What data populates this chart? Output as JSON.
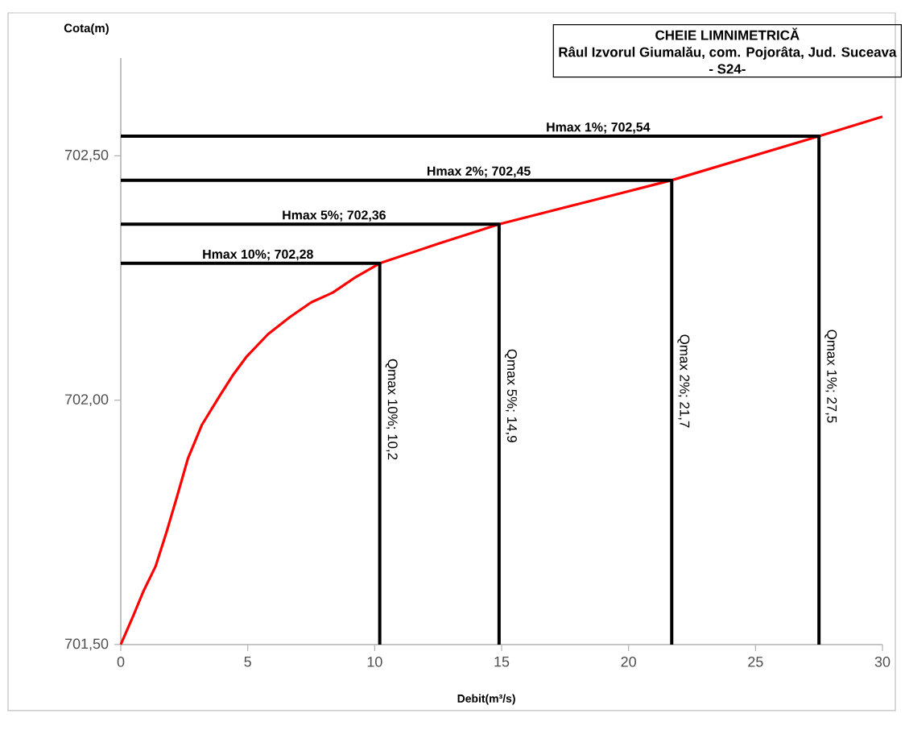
{
  "chart_data": {
    "type": "line",
    "title": "CHEIE LIMNIMETRICĂ",
    "subtitle": "Râul Izvorul Giumalău, com. Pojorâta, Jud. Suceava",
    "xlabel": "Debit(m³/s)",
    "ylabel": "Cota(m)",
    "xlim": [
      0,
      30
    ],
    "xticks": [
      0,
      5,
      10,
      15,
      20,
      25,
      30
    ],
    "ylim": [
      701.5,
      702.7
    ],
    "yticks": [
      {
        "value": 701.5,
        "label": "701,50"
      },
      {
        "value": 702.0,
        "label": "702,00"
      },
      {
        "value": 702.5,
        "label": "702,50"
      }
    ],
    "grid": false,
    "marker": "none",
    "line_style": "solid",
    "series": [
      {
        "color": "#ff0000",
        "x": [
          0,
          0.5,
          0.9,
          1.37,
          1.8,
          2.2,
          2.64,
          3.2,
          3.91,
          4.4,
          4.97,
          5.8,
          6.66,
          7.5,
          8.35,
          9.2,
          10.2,
          12.5,
          14.9,
          21.7,
          27.5,
          30
        ],
        "values": [
          701.5,
          701.56,
          701.61,
          701.66,
          701.73,
          701.8,
          701.88,
          701.95,
          702.01,
          702.05,
          702.09,
          702.135,
          702.17,
          702.2,
          702.22,
          702.25,
          702.28,
          702.32,
          702.36,
          702.45,
          702.54,
          702.58
        ]
      },
      {
        "color": "#000000",
        "x": [
          0,
          10.2,
          10.2
        ],
        "values": [
          702.28,
          702.28,
          701.5
        ]
      },
      {
        "color": "#000000",
        "x": [
          0,
          14.9,
          14.9
        ],
        "values": [
          702.36,
          702.36,
          701.5
        ]
      },
      {
        "color": "#000000",
        "x": [
          0,
          21.7,
          21.7
        ],
        "values": [
          702.45,
          702.45,
          701.5
        ]
      },
      {
        "color": "#000000",
        "x": [
          0,
          27.5,
          27.5
        ],
        "values": [
          702.54,
          702.54,
          701.5
        ]
      }
    ],
    "annotations": [
      "- S24-",
      {
        "text": "Hmax 10%; 702,28",
        "x": 5.4,
        "y": 702.28
      },
      {
        "text": "Hmax 5%; 702,36",
        "x": 8.4,
        "y": 702.36
      },
      {
        "text": "Hmax 2%; 702,45",
        "x": 14.1,
        "y": 702.45
      },
      {
        "text": "Hmax 1%; 702,54",
        "x": 18.8,
        "y": 702.54
      },
      {
        "text": "Qmax 10%; 10,2",
        "x": 10.2,
        "y": 702.1
      },
      {
        "text": "Qmax 5%; 14,9",
        "x": 14.9,
        "y": 702.12
      },
      {
        "text": "Qmax 2%; 21,7",
        "x": 21.7,
        "y": 702.15
      },
      {
        "text": "Qmax 1%; 27,5",
        "x": 27.5,
        "y": 702.16
      }
    ]
  }
}
